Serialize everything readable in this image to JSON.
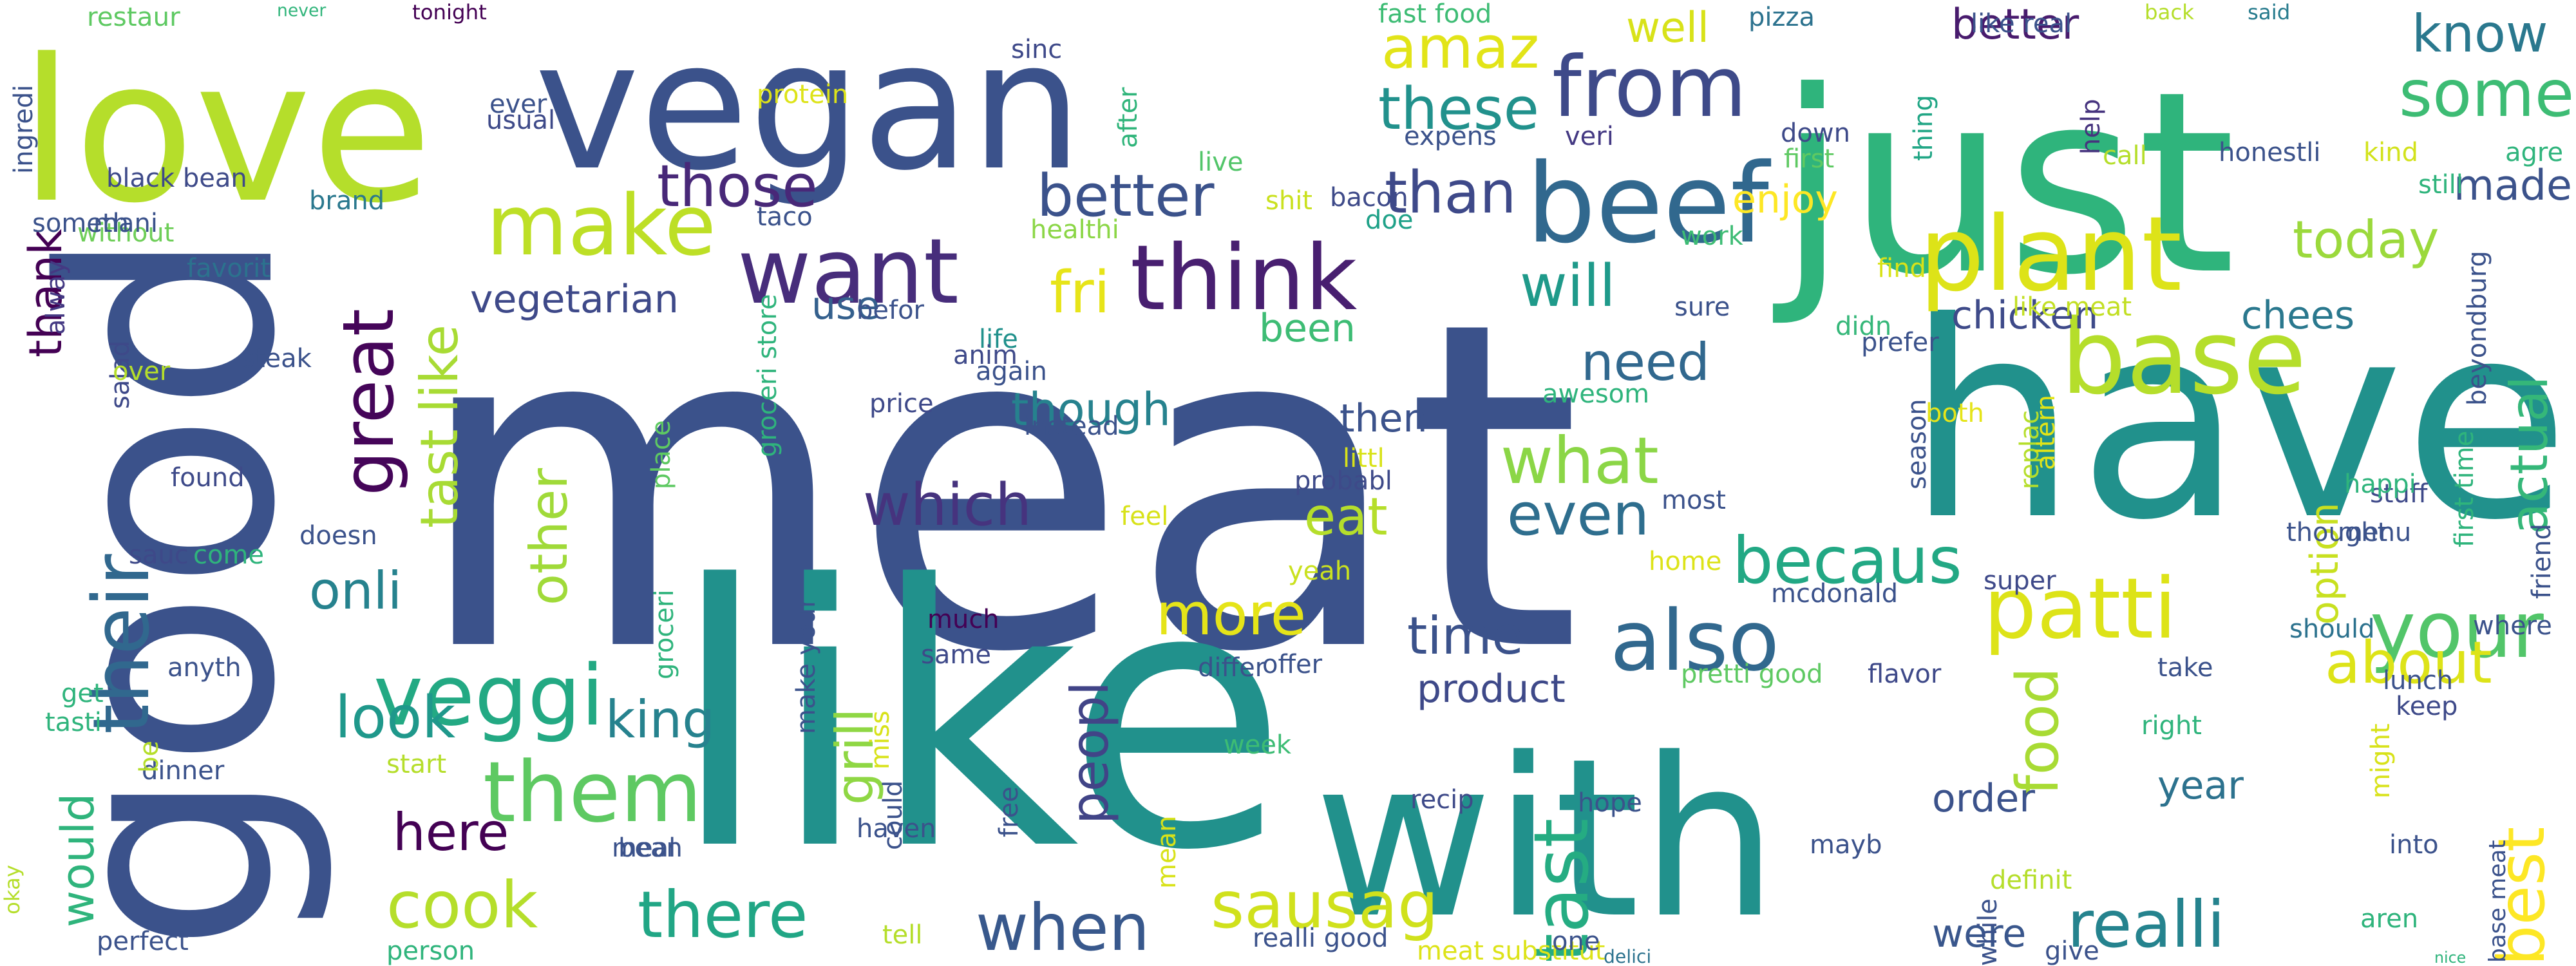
{
  "words": [
    {
      "text": "meat",
      "color": "#3b528b"
    },
    {
      "text": "like",
      "color": "#21918c"
    },
    {
      "text": "have",
      "color": "#21918c"
    },
    {
      "text": "good",
      "color": "#3b528b"
    },
    {
      "text": "vegan",
      "color": "#3b528b"
    },
    {
      "text": "with",
      "color": "#21918c"
    },
    {
      "text": "just",
      "color": "#2fb47c"
    },
    {
      "text": "love",
      "color": "#b5de2b"
    },
    {
      "text": "plant",
      "color": "#dde318"
    },
    {
      "text": "base",
      "color": "#b5de2b"
    },
    {
      "text": "beef",
      "color": "#31688e"
    },
    {
      "text": "from",
      "color": "#3e4a89"
    },
    {
      "text": "think",
      "color": "#481f70"
    },
    {
      "text": "want",
      "color": "#472d7b"
    },
    {
      "text": "make",
      "color": "#bddf26"
    },
    {
      "text": "patti",
      "color": "#dde318"
    },
    {
      "text": "your",
      "color": "#52c569"
    },
    {
      "text": "also",
      "color": "#31688e"
    },
    {
      "text": "tast",
      "color": "#25ac82"
    },
    {
      "text": "veggi",
      "color": "#23a983"
    },
    {
      "text": "them",
      "color": "#5ec962"
    },
    {
      "text": "their",
      "color": "#31688e"
    },
    {
      "text": "delici",
      "color": "#2c728e"
    },
    {
      "text": "realli",
      "color": "#25838e"
    },
    {
      "text": "there",
      "color": "#21a685"
    },
    {
      "text": "when",
      "color": "#38588c"
    },
    {
      "text": "sausag",
      "color": "#d0e11c"
    },
    {
      "text": "great",
      "color": "#450559"
    },
    {
      "text": "cook",
      "color": "#b5de2b"
    },
    {
      "text": "becaus",
      "color": "#22a884"
    },
    {
      "text": "best",
      "color": "#fde725"
    },
    {
      "text": "what",
      "color": "#8bd646"
    },
    {
      "text": "even",
      "color": "#2e6e8e"
    },
    {
      "text": "will",
      "color": "#1f9a8a"
    },
    {
      "text": "which",
      "color": "#46337e"
    },
    {
      "text": "some",
      "color": "#3dbc74"
    },
    {
      "text": "these",
      "color": "#21918c"
    },
    {
      "text": "those",
      "color": "#482878"
    },
    {
      "text": "than",
      "color": "#3e4989"
    },
    {
      "text": "better",
      "color": "#3b528b"
    },
    {
      "text": "amaz",
      "color": "#e2e418"
    },
    {
      "text": "food",
      "color": "#a8db34"
    },
    {
      "text": "more",
      "color": "#e5e419"
    },
    {
      "text": "peopl",
      "color": "#414487"
    },
    {
      "text": "look",
      "color": "#1f988b"
    },
    {
      "text": "here",
      "color": "#440154"
    },
    {
      "text": "would",
      "color": "#2fb47c"
    },
    {
      "text": "about",
      "color": "#dde318"
    },
    {
      "text": "actual",
      "color": "#35b779"
    },
    {
      "text": "onli",
      "color": "#26828e"
    },
    {
      "text": "time",
      "color": "#3b528b"
    },
    {
      "text": "eat",
      "color": "#b5de2b"
    },
    {
      "text": "know",
      "color": "#2a788e"
    },
    {
      "text": "grill",
      "color": "#8fd744"
    },
    {
      "text": "made",
      "color": "#3b528b"
    },
    {
      "text": "today",
      "color": "#9bd93c"
    },
    {
      "text": "well",
      "color": "#d8e219"
    },
    {
      "text": "need",
      "color": "#31688e"
    },
    {
      "text": "king",
      "color": "#26828e"
    },
    {
      "text": "other",
      "color": "#a0da39"
    },
    {
      "text": "tast like",
      "color": "#a8db34"
    },
    {
      "text": "fri",
      "color": "#e7e419"
    },
    {
      "text": "thank",
      "color": "#440154"
    },
    {
      "text": "better",
      "color": "#481b6d"
    },
    {
      "text": "though",
      "color": "#26828e"
    },
    {
      "text": "product",
      "color": "#3e4989"
    },
    {
      "text": "enjoy",
      "color": "#fde725"
    },
    {
      "text": "chicken",
      "color": "#3e4a89"
    },
    {
      "text": "chees",
      "color": "#2a788e"
    },
    {
      "text": "vegetarian",
      "color": "#3e4989"
    },
    {
      "text": "order",
      "color": "#3b528b"
    },
    {
      "text": "were",
      "color": "#39568c"
    },
    {
      "text": "year",
      "color": "#2c728e"
    },
    {
      "text": "option",
      "color": "#c8e020"
    },
    {
      "text": "then",
      "color": "#3b528b"
    },
    {
      "text": "been",
      "color": "#3dbc74"
    },
    {
      "text": "use",
      "color": "#34608d"
    },
    {
      "text": "restaur",
      "color": "#5ec962"
    },
    {
      "text": "never",
      "color": "#31b57b"
    },
    {
      "text": "tonight",
      "color": "#440154"
    },
    {
      "text": "fast food",
      "color": "#3dbc74"
    },
    {
      "text": "pizza",
      "color": "#2c728e"
    },
    {
      "text": "like real",
      "color": "#3b528b"
    },
    {
      "text": "back",
      "color": "#b5de2b"
    },
    {
      "text": "said",
      "color": "#287c8e"
    },
    {
      "text": "sinc",
      "color": "#3e4989"
    },
    {
      "text": "after",
      "color": "#31b57b"
    },
    {
      "text": "ever",
      "color": "#3b528b"
    },
    {
      "text": "protein",
      "color": "#dde318"
    },
    {
      "text": "usual",
      "color": "#3e4a89"
    },
    {
      "text": "ingredi",
      "color": "#3b528b"
    },
    {
      "text": "black bean",
      "color": "#3e4a89"
    },
    {
      "text": "brand",
      "color": "#2a788e"
    },
    {
      "text": "live",
      "color": "#52c569"
    },
    {
      "text": "expens",
      "color": "#3b528b"
    },
    {
      "text": "veri",
      "color": "#443983"
    },
    {
      "text": "down",
      "color": "#3e4a89"
    },
    {
      "text": "first",
      "color": "#5ec962"
    },
    {
      "text": "thing",
      "color": "#21a685"
    },
    {
      "text": "help",
      "color": "#46337e"
    },
    {
      "text": "call",
      "color": "#b5de2b"
    },
    {
      "text": "honestli",
      "color": "#3b528b"
    },
    {
      "text": "kind",
      "color": "#d2e21b"
    },
    {
      "text": "agre",
      "color": "#2fb47c"
    },
    {
      "text": "without",
      "color": "#6ece58"
    },
    {
      "text": "taco",
      "color": "#3b528b"
    },
    {
      "text": "shit",
      "color": "#cae11f"
    },
    {
      "text": "bacon",
      "color": "#3e4a89"
    },
    {
      "text": "doe",
      "color": "#1fa188"
    },
    {
      "text": "healthi",
      "color": "#8bd646"
    },
    {
      "text": "work",
      "color": "#3dbc74"
    },
    {
      "text": "favorit",
      "color": "#2c728e"
    },
    {
      "text": "befor",
      "color": "#3b528b"
    },
    {
      "text": "find",
      "color": "#d8e219"
    },
    {
      "text": "didn",
      "color": "#35b779"
    },
    {
      "text": "prefer",
      "color": "#3b528b"
    },
    {
      "text": "like meat",
      "color": "#c2df23"
    },
    {
      "text": "sure",
      "color": "#3b528b"
    },
    {
      "text": "alway",
      "color": "#443983"
    },
    {
      "text": "salad",
      "color": "#3e4989"
    },
    {
      "text": "over",
      "color": "#b5de2b"
    },
    {
      "text": "steak",
      "color": "#3b528b"
    },
    {
      "text": "life",
      "color": "#21918c"
    },
    {
      "text": "anim",
      "color": "#3e4989"
    },
    {
      "text": "again",
      "color": "#3b528b"
    },
    {
      "text": "beyondburg",
      "color": "#3b528b"
    },
    {
      "text": "awesom",
      "color": "#2fb47c"
    },
    {
      "text": "both",
      "color": "#e5e419"
    },
    {
      "text": "price",
      "color": "#3e4989"
    },
    {
      "text": "found",
      "color": "#3e4a89"
    },
    {
      "text": "instead",
      "color": "#3b528b"
    },
    {
      "text": "littl",
      "color": "#d8e219"
    },
    {
      "text": "probabl",
      "color": "#3e4a89"
    },
    {
      "text": "season",
      "color": "#3b528b"
    },
    {
      "text": "replac",
      "color": "#b5de2b"
    },
    {
      "text": "altern",
      "color": "#e2e418"
    },
    {
      "text": "stuff",
      "color": "#3e4989"
    },
    {
      "text": "groceri store",
      "color": "#2fb47c"
    },
    {
      "text": "place",
      "color": "#5ec962"
    },
    {
      "text": "doesn",
      "color": "#3b528b"
    },
    {
      "text": "sauc",
      "color": "#3e4989"
    },
    {
      "text": "come",
      "color": "#2fb47c"
    },
    {
      "text": "feel",
      "color": "#d8e219"
    },
    {
      "text": "most",
      "color": "#3b528b"
    },
    {
      "text": "happi",
      "color": "#2fb47c"
    },
    {
      "text": "first time",
      "color": "#2fb47c"
    },
    {
      "text": "thought",
      "color": "#3b528b"
    },
    {
      "text": "menu",
      "color": "#3b528b"
    },
    {
      "text": "home",
      "color": "#dde318"
    },
    {
      "text": "yeah",
      "color": "#cae11f"
    },
    {
      "text": "mcdonald",
      "color": "#3b528b"
    },
    {
      "text": "super",
      "color": "#3e4989"
    },
    {
      "text": "should",
      "color": "#2c728e"
    },
    {
      "text": "where",
      "color": "#3b528b"
    },
    {
      "text": "friend",
      "color": "#3b528b"
    },
    {
      "text": "anyth",
      "color": "#3b528b"
    },
    {
      "text": "much",
      "color": "#440154"
    },
    {
      "text": "same",
      "color": "#3e4989"
    },
    {
      "text": "make your",
      "color": "#3b528b"
    },
    {
      "text": "groceri",
      "color": "#2fb47c"
    },
    {
      "text": "offer",
      "color": "#3b528b"
    },
    {
      "text": "differ",
      "color": "#3b528b"
    },
    {
      "text": "pretti good",
      "color": "#5ec962"
    },
    {
      "text": "flavor",
      "color": "#3e4989"
    },
    {
      "text": "take",
      "color": "#3b528b"
    },
    {
      "text": "lunch",
      "color": "#3b528b"
    },
    {
      "text": "keep",
      "color": "#3e4a89"
    },
    {
      "text": "get",
      "color": "#2fb47c"
    },
    {
      "text": "tasti",
      "color": "#2fb47c"
    },
    {
      "text": "okay",
      "color": "#b5de2b"
    },
    {
      "text": "dinner",
      "color": "#3b528b"
    },
    {
      "text": "be",
      "color": "#b5de2b"
    },
    {
      "text": "start",
      "color": "#b5de2b"
    },
    {
      "text": "miss",
      "color": "#d8e219"
    },
    {
      "text": "could",
      "color": "#3b528b"
    },
    {
      "text": "haven",
      "color": "#3b528b"
    },
    {
      "text": "meal",
      "color": "#3b528b"
    },
    {
      "text": "week",
      "color": "#3dbc74"
    },
    {
      "text": "recip",
      "color": "#3e4a89"
    },
    {
      "text": "hope",
      "color": "#3b528b"
    },
    {
      "text": "mayb",
      "color": "#3b528b"
    },
    {
      "text": "right",
      "color": "#2fb47c"
    },
    {
      "text": "while",
      "color": "#3b528b"
    },
    {
      "text": "might",
      "color": "#d8e219"
    },
    {
      "text": "into",
      "color": "#3b528b"
    },
    {
      "text": "bean",
      "color": "#3b528b"
    },
    {
      "text": "definit",
      "color": "#b5de2b"
    },
    {
      "text": "free",
      "color": "#3b528b"
    },
    {
      "text": "mean",
      "color": "#d8e219"
    },
    {
      "text": "aren",
      "color": "#2fb47c"
    },
    {
      "text": "base meat",
      "color": "#3b528b"
    },
    {
      "text": "nice",
      "color": "#2fb47c"
    },
    {
      "text": "give",
      "color": "#3b528b"
    },
    {
      "text": "perfect",
      "color": "#3b528b"
    },
    {
      "text": "person",
      "color": "#2fb47c"
    },
    {
      "text": "tell",
      "color": "#b5de2b"
    },
    {
      "text": "realli good",
      "color": "#3b528b"
    },
    {
      "text": "meat substitut",
      "color": "#dde318"
    },
    {
      "text": "one",
      "color": "#3b528b"
    },
    {
      "text": "still",
      "color": "#2fb47c"
    },
    {
      "text": "someth",
      "color": "#3b528b"
    },
    {
      "text": "mani",
      "color": "#3b528b"
    }
  ]
}
